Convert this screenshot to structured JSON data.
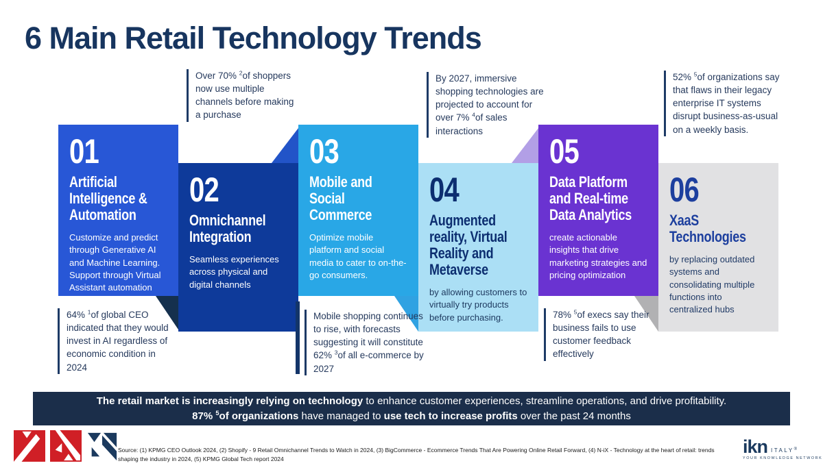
{
  "page": {
    "title": "6 Main Retail Technology Trends"
  },
  "theme": {
    "title-color": "#17355f",
    "callout-text": "#25395c",
    "callout-line": "#1d3a66",
    "banner-bg": "#1b2e4a",
    "banner-text": "#ffffff",
    "source-text": "#1a1a1a",
    "logo-navy": "#1b3a5e",
    "logo-red": "#d01f26"
  },
  "panels": [
    {
      "number": "01",
      "title": "Artificial\nIntelligence &\nAutomation",
      "body": "Customize and predict through Generative AI and Machine Learning. Support through Virtual Assistant automation",
      "bg": "#2857d6",
      "heading_color": "#ffffff",
      "body_color": "#ffffff"
    },
    {
      "number": "02",
      "title": "Omnichannel\nIntegration",
      "body": "Seamless experiences across physical and digital channels",
      "bg": "#0e3a9a",
      "heading_color": "#ffffff",
      "body_color": "#ffffff"
    },
    {
      "number": "03",
      "title": "Mobile and\nSocial\nCommerce",
      "body": "Optimize mobile platform and social media to cater to on-the-go consumers.",
      "bg": "#29a7e6",
      "heading_color": "#ffffff",
      "body_color": "#ffffff"
    },
    {
      "number": "04",
      "title": "Augmented\nreality, Virtual\nReality and\nMetaverse",
      "body": "by allowing customers to virtually try products before purchasing.",
      "bg": "#abdff5",
      "heading_color": "#0c2e70",
      "body_color": "#1e3a60"
    },
    {
      "number": "05",
      "title": "Data Platform\nand Real-time\nData Analytics",
      "body": "create actionable insights that drive marketing strategies and pricing optimization",
      "bg": "#6a33d1",
      "heading_color": "#ffffff",
      "body_color": "#ffffff"
    },
    {
      "number": "06",
      "title": "XaaS\nTechnologies",
      "body": "by replacing outdated systems and consolidating multiple functions into centralized hubs",
      "bg": "#e1e1e3",
      "heading_color": "#1d3f9e",
      "body_color": "#203a66"
    }
  ],
  "folds": [
    {
      "color": "#15304e"
    },
    {
      "color": "#2254c8"
    },
    {
      "color": "#30a2e2"
    },
    {
      "color": "#b29fe6"
    },
    {
      "color": "#b1b1b3"
    }
  ],
  "callouts": [
    {
      "pre": "Over 70% ",
      "sup": "2",
      "post": "of shoppers now use multiple channels before making a purchase"
    },
    {
      "pre": "By 2027, immersive shopping technologies are projected to account for over 7% ",
      "sup": "4",
      "post": "of sales interactions"
    },
    {
      "pre": "52% ",
      "sup": "5",
      "post": "of organizations say that flaws in their legacy enterprise IT systems disrupt business-as-usual on a weekly basis."
    },
    {
      "pre": "64% ",
      "sup": "1",
      "post": "of global CEO indicated that they would invest in AI regardless of economic condition in 2024"
    },
    {
      "pre": "Mobile shopping continues to rise, with forecasts suggesting it will constitute 62% ",
      "sup": "3",
      "post": "of all e-commerce by 2027"
    },
    {
      "pre": "78% ",
      "sup": "5",
      "post": "of execs say their business fails to use customer feedback effectively"
    }
  ],
  "banner": {
    "line1": [
      {
        "t": "The retail market is increasingly relying on technology",
        "b": true
      },
      {
        "t": " to enhance customer experiences, streamline operations, and drive profitability.",
        "b": false
      }
    ],
    "line2": [
      {
        "t": "87% ",
        "b": true
      },
      {
        "sup": "5",
        "b": true
      },
      {
        "t": "of organizations",
        "b": true
      },
      {
        "t": " have managed to ",
        "b": false
      },
      {
        "t": "use tech to increase profits",
        "b": true
      },
      {
        "t": " over the past 24 months",
        "b": false
      }
    ]
  },
  "footer": {
    "source": "Source: (1) KPMG CEO Outlook 2024,  (2) Shopify - 9 Retail Omnichannel Trends to Watch in 2024, (3) BigCommerce - Ecommerce Trends That Are Powering Online Retail Forward, (4) N-iX - Technology at the heart of retail: trends shaping the industry in 2024, (5) KPMG Global Tech report 2024",
    "ikn": {
      "mark": "ikn",
      "country": "ITALY",
      "reg": "®",
      "tagline": "YOUR KNOWLEDGE NETWORK"
    }
  }
}
